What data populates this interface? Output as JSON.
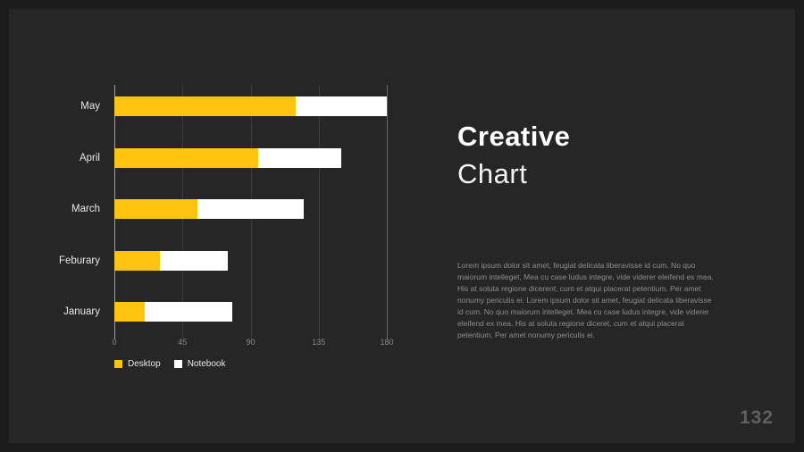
{
  "slide": {
    "title_line1": "Creative",
    "title_line2": "Chart",
    "body_text": "Lorem ipsum dolor sit amet, feugiat delicata liberavisse id cum. No quo maiorum intelleget, Mea cu case ludus integre, vide viderer eleifend ex mea. His at soluta regione dicerent, cum et atqui placerat petentium. Per amet nonumy periculis ei. Lorem ipsum dolor sit amet, feugiat delicata liberavisse id cum. No quo maiorum intelleget. Mea cu case ludus integre, vide viderer eleifend ex mea. His at soluta regione diceret, cum et atqui placerat petentium. Per amet nonumy periculis ei.",
    "page_number": "132"
  },
  "chart_data": {
    "type": "bar",
    "orientation": "horizontal",
    "stacked": true,
    "categories": [
      "May",
      "April",
      "March",
      "Feburary",
      "January"
    ],
    "series": [
      {
        "name": "Desktop",
        "color": "#ffc40d",
        "values": [
          120,
          95,
          55,
          30,
          20
        ]
      },
      {
        "name": "Notebook",
        "color": "#ffffff",
        "values": [
          60,
          55,
          70,
          45,
          58
        ]
      }
    ],
    "x_ticks": [
      0,
      45,
      90,
      135,
      180
    ],
    "xlim": [
      0,
      180
    ],
    "grid": true,
    "legend_position": "bottom-left"
  },
  "colors": {
    "background": "#262626",
    "frame": "#1c1c1c",
    "accent": "#ffc40d",
    "bar_secondary": "#ffffff",
    "text_primary": "#ffffff",
    "text_muted": "#8d8d8d"
  }
}
